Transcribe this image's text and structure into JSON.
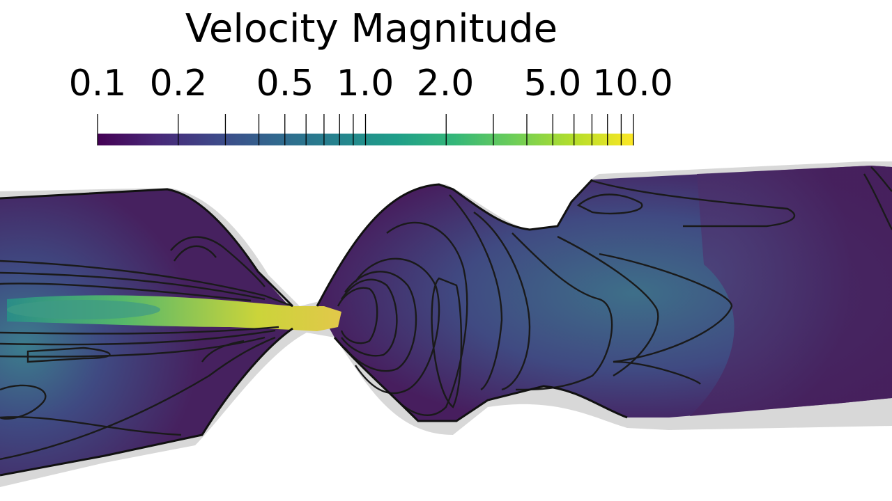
{
  "colorbar": {
    "title": "Velocity Magnitude",
    "scale": "log",
    "range": [
      0.1,
      10.0
    ],
    "colormap": "viridis",
    "colormap_stops": [
      "#440154",
      "#482878",
      "#3e4989",
      "#31688e",
      "#26828e",
      "#1f9e89",
      "#35b779",
      "#6ece58",
      "#b5de2b",
      "#fde725"
    ],
    "labeled_ticks": [
      {
        "value": 0.1,
        "label": "0.1"
      },
      {
        "value": 0.2,
        "label": "0.2"
      },
      {
        "value": 0.5,
        "label": "0.5"
      },
      {
        "value": 1.0,
        "label": "1.0"
      },
      {
        "value": 2.0,
        "label": "2.0"
      },
      {
        "value": 5.0,
        "label": "5.0"
      },
      {
        "value": 10.0,
        "label": "10.0"
      }
    ],
    "minor_ticks": [
      0.3,
      0.4,
      0.6,
      0.7,
      0.8,
      0.9,
      3.0,
      4.0,
      6.0,
      7.0,
      8.0,
      9.0
    ]
  },
  "scene": {
    "shadow_color": "#d6d6d6",
    "background_flow_color": "#46215f",
    "contour_color": "#1a1a1a"
  }
}
